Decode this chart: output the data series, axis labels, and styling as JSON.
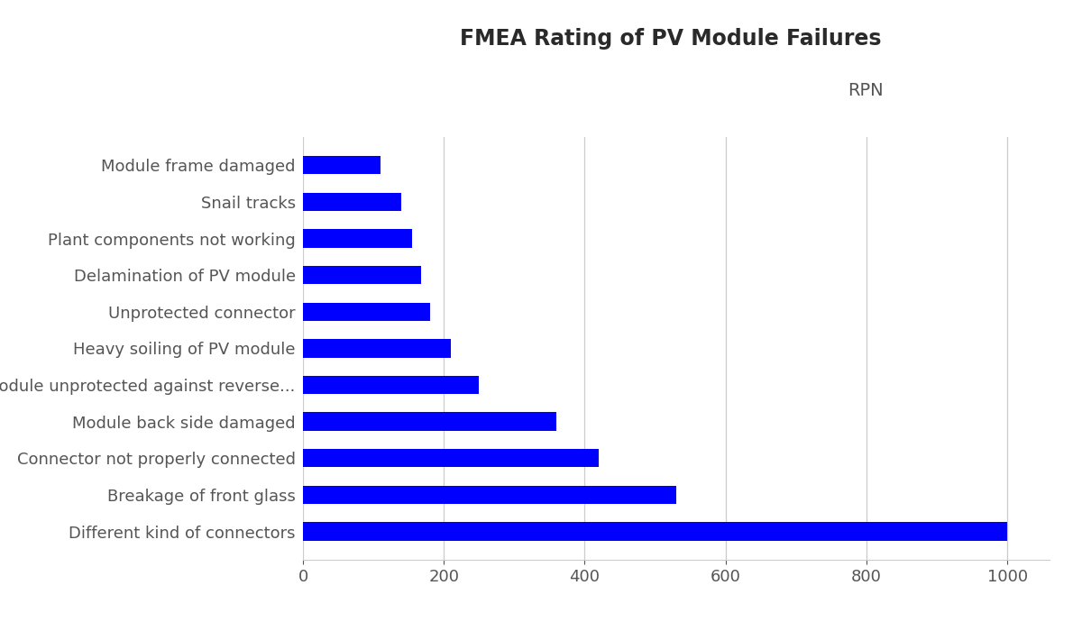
{
  "title": "FMEA Rating of PV Module Failures",
  "rpn_label": "RPN",
  "categories": [
    "Different kind of connectors",
    "Breakage of front glass",
    "Connector not properly connected",
    "Module back side damaged",
    "Module unprotected against reverse...",
    "Heavy soiling of PV module",
    "Unprotected connector",
    "Delamination of PV module",
    "Plant components not working",
    "Snail tracks",
    "Module frame damaged"
  ],
  "values": [
    1000,
    530,
    420,
    360,
    250,
    210,
    180,
    168,
    155,
    140,
    110
  ],
  "bar_color": "#0000FF",
  "background_color": "#FFFFFF",
  "xlim": [
    0,
    1060
  ],
  "xticks": [
    0,
    200,
    400,
    600,
    800,
    1000
  ],
  "title_fontsize": 17,
  "label_fontsize": 13,
  "tick_fontsize": 13,
  "rpn_fontsize": 14,
  "grid_color": "#CCCCCC",
  "bar_height": 0.5,
  "title_color": "#2a2a2a",
  "label_color": "#555555",
  "tick_color": "#555555"
}
